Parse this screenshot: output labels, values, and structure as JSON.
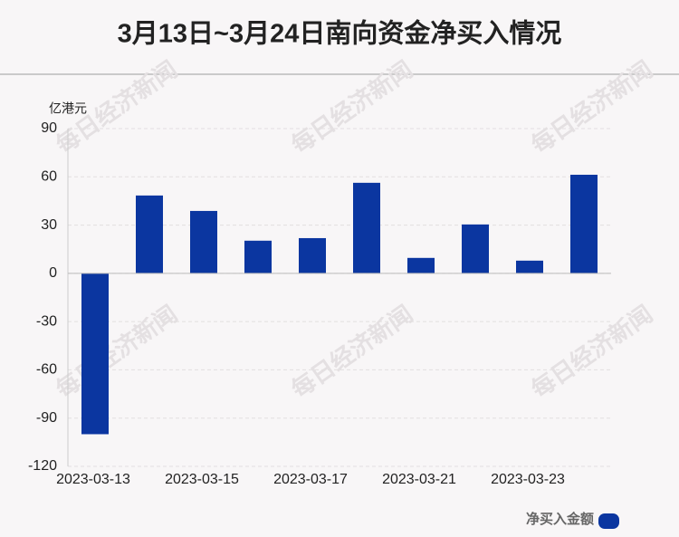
{
  "chart_data": {
    "type": "bar",
    "title": "3月13日~3月24日南向资金净买入情况",
    "y_label": "亿港元",
    "watermark": "每日经济新闻",
    "categories": [
      "2023-03-13",
      null,
      "2023-03-15",
      null,
      "2023-03-17",
      null,
      "2023-03-21",
      null,
      "2023-03-23",
      null
    ],
    "series": [
      {
        "name": "净买入金额",
        "color": "#0b36a0",
        "values": [
          -100,
          48.4,
          38.8,
          20.3,
          21.9,
          56.3,
          9.6,
          30.4,
          7.9,
          61.3
        ]
      }
    ],
    "ylim": [
      -120,
      90
    ],
    "yticks": [
      90,
      60,
      30,
      0,
      -30,
      -60,
      -90,
      -120
    ],
    "grid": true,
    "legend": "bottom-right"
  }
}
